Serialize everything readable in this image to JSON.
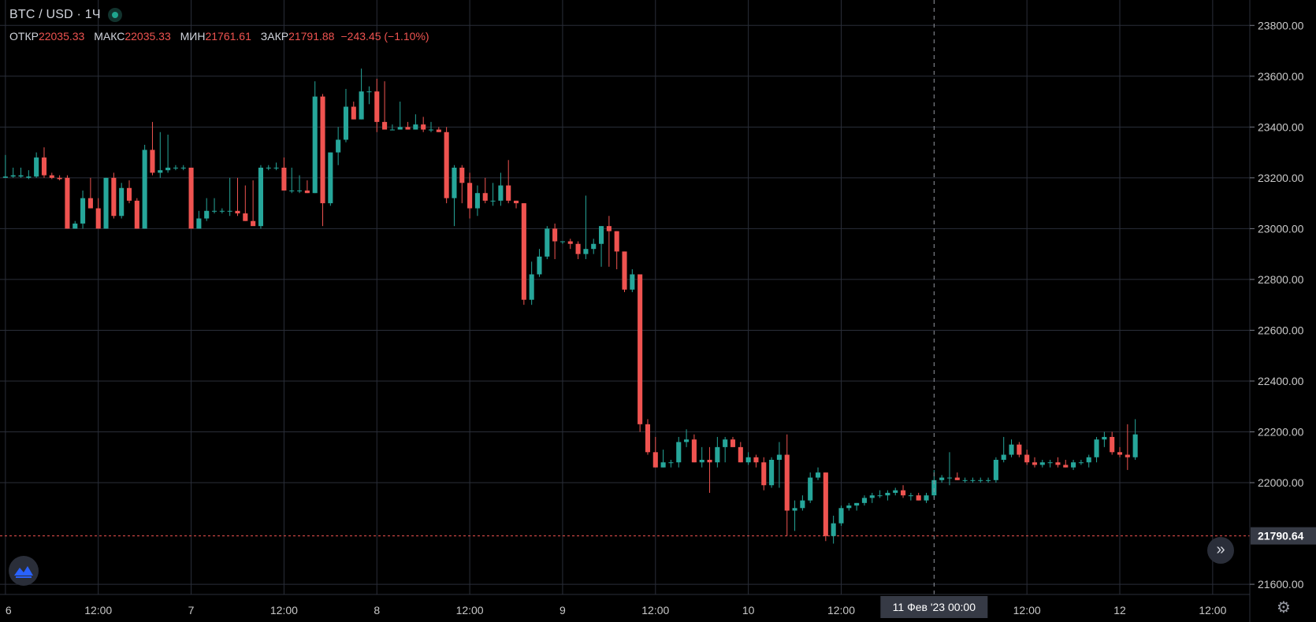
{
  "header": {
    "title": "BTC / USD · 1Ч",
    "ohlc": [
      {
        "label": "ОТКР",
        "value": "22035.33"
      },
      {
        "label": "МАКС",
        "value": "22035.33"
      },
      {
        "label": "МИН",
        "value": "21761.61"
      },
      {
        "label": "ЗАКР",
        "value": "21791.88"
      }
    ],
    "change": "−243.45 (−1.10%)"
  },
  "colors": {
    "up": "#26a69a",
    "down": "#ef5350",
    "grid": "#2a2e39",
    "background": "#000000",
    "label_bg": "#363a45",
    "price_line": "#ef5350"
  },
  "icons": {
    "logo": "tradingview-logo-icon",
    "scroll": "double-chevron-right-icon",
    "settings": "gear-icon"
  },
  "crosshair_label": "11 Фев '23   00:00",
  "last_price_label": "21790.64",
  "chart_data": {
    "type": "candlestick",
    "title": "BTC / USD · 1Ч",
    "y_range": [
      21560,
      23900
    ],
    "y_ticks": [
      "23800.00",
      "23600.00",
      "23400.00",
      "23200.00",
      "23000.00",
      "22800.00",
      "22600.00",
      "22400.00",
      "22200.00",
      "22000.00",
      "21600.00"
    ],
    "y_tick_values": [
      23800,
      23600,
      23400,
      23200,
      23000,
      22800,
      22600,
      22400,
      22200,
      22000,
      21600
    ],
    "x_ticks": [
      {
        "label": "6",
        "hour": 0
      },
      {
        "label": "12:00",
        "hour": 12
      },
      {
        "label": "7",
        "hour": 24
      },
      {
        "label": "12:00",
        "hour": 36
      },
      {
        "label": "8",
        "hour": 48
      },
      {
        "label": "12:00",
        "hour": 60
      },
      {
        "label": "9",
        "hour": 72
      },
      {
        "label": "12:00",
        "hour": 84
      },
      {
        "label": "10",
        "hour": 96
      },
      {
        "label": "12:00",
        "hour": 108
      },
      {
        "label": "12:00",
        "hour": 132
      },
      {
        "label": "12",
        "hour": 144
      },
      {
        "label": "12:00",
        "hour": 156
      }
    ],
    "x_range_hours": [
      -0.7,
      160.8
    ],
    "crosshair_hour": 120,
    "last_price": 21790.64,
    "candles": [
      [
        23200,
        23290,
        23200,
        23205
      ],
      [
        23205,
        23240,
        23200,
        23210
      ],
      [
        23205,
        23240,
        23200,
        23210
      ],
      [
        23200,
        23230,
        23195,
        23205
      ],
      [
        23205,
        23300,
        23200,
        23280
      ],
      [
        23280,
        23320,
        23200,
        23210
      ],
      [
        23210,
        23220,
        23195,
        23200
      ],
      [
        23200,
        23210,
        23190,
        23195
      ],
      [
        23200,
        23210,
        23000,
        23000
      ],
      [
        23000,
        23030,
        23000,
        23020
      ],
      [
        23020,
        23150,
        23000,
        23120
      ],
      [
        23120,
        23200,
        23080,
        23080
      ],
      [
        23080,
        23120,
        23000,
        23000
      ],
      [
        23000,
        23200,
        23000,
        23200
      ],
      [
        23200,
        23220,
        23040,
        23050
      ],
      [
        23050,
        23180,
        23040,
        23160
      ],
      [
        23160,
        23190,
        23100,
        23110
      ],
      [
        23110,
        23120,
        23000,
        23000
      ],
      [
        23000,
        23330,
        23000,
        23310
      ],
      [
        23310,
        23420,
        23210,
        23220
      ],
      [
        23220,
        23380,
        23200,
        23230
      ],
      [
        23230,
        23370,
        23220,
        23240
      ],
      [
        23240,
        23250,
        23230,
        23240
      ],
      [
        23240,
        23250,
        23230,
        23240
      ],
      [
        23240,
        23240,
        23000,
        23000
      ],
      [
        23000,
        23070,
        23000,
        23040
      ],
      [
        23040,
        23120,
        23030,
        23070
      ],
      [
        23070,
        23120,
        23060,
        23070
      ],
      [
        23070,
        23080,
        23060,
        23070
      ],
      [
        23070,
        23200,
        23050,
        23070
      ],
      [
        23070,
        23200,
        23050,
        23060
      ],
      [
        23060,
        23170,
        23030,
        23030
      ],
      [
        23030,
        23190,
        23020,
        23010
      ],
      [
        23010,
        23250,
        23000,
        23240
      ],
      [
        23240,
        23250,
        23230,
        23240
      ],
      [
        23240,
        23260,
        23230,
        23240
      ],
      [
        23240,
        23280,
        23150,
        23150
      ],
      [
        23150,
        23240,
        23140,
        23150
      ],
      [
        23150,
        23210,
        23140,
        23150
      ],
      [
        23150,
        23190,
        23140,
        23140
      ],
      [
        23140,
        23580,
        23140,
        23520
      ],
      [
        23520,
        23530,
        23010,
        23100
      ],
      [
        23100,
        23300,
        23090,
        23300
      ],
      [
        23300,
        23400,
        23250,
        23350
      ],
      [
        23350,
        23550,
        23340,
        23480
      ],
      [
        23480,
        23500,
        23430,
        23430
      ],
      [
        23430,
        23630,
        23430,
        23540
      ],
      [
        23540,
        23560,
        23490,
        23540
      ],
      [
        23540,
        23590,
        23380,
        23420
      ],
      [
        23420,
        23580,
        23400,
        23390
      ],
      [
        23390,
        23410,
        23390,
        23390
      ],
      [
        23390,
        23500,
        23390,
        23400
      ],
      [
        23400,
        23420,
        23390,
        23390
      ],
      [
        23390,
        23450,
        23390,
        23410
      ],
      [
        23410,
        23440,
        23380,
        23390
      ],
      [
        23390,
        23420,
        23380,
        23390
      ],
      [
        23390,
        23400,
        23380,
        23380
      ],
      [
        23380,
        23400,
        23100,
        23120
      ],
      [
        23120,
        23250,
        23010,
        23240
      ],
      [
        23240,
        23250,
        23100,
        23180
      ],
      [
        23180,
        23220,
        23040,
        23080
      ],
      [
        23080,
        23170,
        23050,
        23140
      ],
      [
        23140,
        23200,
        23100,
        23110
      ],
      [
        23110,
        23180,
        23090,
        23110
      ],
      [
        23110,
        23220,
        23090,
        23170
      ],
      [
        23170,
        23270,
        23100,
        23110
      ],
      [
        23110,
        23110,
        23080,
        23100
      ],
      [
        23100,
        23100,
        22700,
        22720
      ],
      [
        22720,
        22870,
        22700,
        22820
      ],
      [
        22820,
        22920,
        22810,
        22890
      ],
      [
        22890,
        23010,
        22880,
        23000
      ],
      [
        23000,
        23020,
        22880,
        22950
      ],
      [
        22950,
        22950,
        22940,
        22950
      ],
      [
        22950,
        22960,
        22920,
        22940
      ],
      [
        22940,
        22950,
        22880,
        22900
      ],
      [
        22900,
        23130,
        22880,
        22920
      ],
      [
        22920,
        22960,
        22900,
        22940
      ],
      [
        22940,
        23010,
        22850,
        23010
      ],
      [
        23010,
        23050,
        22850,
        22990
      ],
      [
        22990,
        22990,
        22840,
        22910
      ],
      [
        22910,
        22910,
        22750,
        22760
      ],
      [
        22760,
        22840,
        22750,
        22820
      ],
      [
        22820,
        22810,
        22200,
        22230
      ],
      [
        22230,
        22250,
        22110,
        22120
      ],
      [
        22120,
        22180,
        22060,
        22060
      ],
      [
        22060,
        22130,
        22060,
        22080
      ],
      [
        22080,
        22090,
        22060,
        22080
      ],
      [
        22080,
        22180,
        22060,
        22160
      ],
      [
        22160,
        22210,
        22140,
        22170
      ],
      [
        22170,
        22190,
        22080,
        22080
      ],
      [
        22080,
        22140,
        22060,
        22090
      ],
      [
        22090,
        22140,
        21960,
        22080
      ],
      [
        22080,
        22180,
        22060,
        22140
      ],
      [
        22140,
        22180,
        22080,
        22170
      ],
      [
        22170,
        22180,
        22140,
        22140
      ],
      [
        22140,
        22160,
        22080,
        22080
      ],
      [
        22080,
        22120,
        22070,
        22100
      ],
      [
        22100,
        22110,
        22060,
        22080
      ],
      [
        22080,
        22100,
        21970,
        21990
      ],
      [
        21990,
        22100,
        21980,
        22090
      ],
      [
        22090,
        22160,
        21980,
        22110
      ],
      [
        22110,
        22190,
        21790,
        21890
      ],
      [
        21890,
        21930,
        21810,
        21900
      ],
      [
        21900,
        21950,
        21890,
        21930
      ],
      [
        21930,
        22040,
        21920,
        22020
      ],
      [
        22020,
        22060,
        22010,
        22040
      ],
      [
        22040,
        22040,
        21770,
        21790
      ],
      [
        21790,
        21870,
        21760,
        21840
      ],
      [
        21840,
        21910,
        21830,
        21900
      ],
      [
        21900,
        21920,
        21890,
        21910
      ],
      [
        21910,
        21920,
        21890,
        21920
      ],
      [
        21920,
        21950,
        21910,
        21940
      ],
      [
        21940,
        21960,
        21920,
        21950
      ],
      [
        21950,
        21970,
        21940,
        21950
      ],
      [
        21950,
        21970,
        21930,
        21960
      ],
      [
        21960,
        21980,
        21950,
        21970
      ],
      [
        21970,
        21990,
        21940,
        21950
      ],
      [
        21950,
        21960,
        21930,
        21950
      ],
      [
        21950,
        21960,
        21930,
        21930
      ],
      [
        21930,
        21960,
        21920,
        21950
      ],
      [
        21950,
        22050,
        21940,
        22010
      ],
      [
        22010,
        22030,
        22000,
        22020
      ],
      [
        22020,
        22120,
        21990,
        22020
      ],
      [
        22020,
        22040,
        22010,
        22010
      ],
      [
        22010,
        22020,
        22000,
        22010
      ],
      [
        22010,
        22020,
        22000,
        22010
      ],
      [
        22010,
        22020,
        22000,
        22010
      ],
      [
        22010,
        22020,
        22000,
        22010
      ],
      [
        22010,
        22100,
        22000,
        22090
      ],
      [
        22090,
        22180,
        22080,
        22110
      ],
      [
        22110,
        22170,
        22100,
        22150
      ],
      [
        22150,
        22160,
        22100,
        22110
      ],
      [
        22110,
        22130,
        22070,
        22080
      ],
      [
        22080,
        22100,
        22060,
        22070
      ],
      [
        22070,
        22090,
        22060,
        22080
      ],
      [
        22080,
        22090,
        22060,
        22080
      ],
      [
        22080,
        22100,
        22060,
        22070
      ],
      [
        22070,
        22090,
        22060,
        22060
      ],
      [
        22060,
        22090,
        22050,
        22080
      ],
      [
        22080,
        22090,
        22070,
        22080
      ],
      [
        22080,
        22110,
        22060,
        22100
      ],
      [
        22100,
        22180,
        22080,
        22170
      ],
      [
        22170,
        22200,
        22140,
        22180
      ],
      [
        22180,
        22200,
        22110,
        22120
      ],
      [
        22120,
        22140,
        22100,
        22110
      ],
      [
        22110,
        22230,
        22050,
        22100
      ],
      [
        22100,
        22250,
        22090,
        22190
      ]
    ]
  }
}
